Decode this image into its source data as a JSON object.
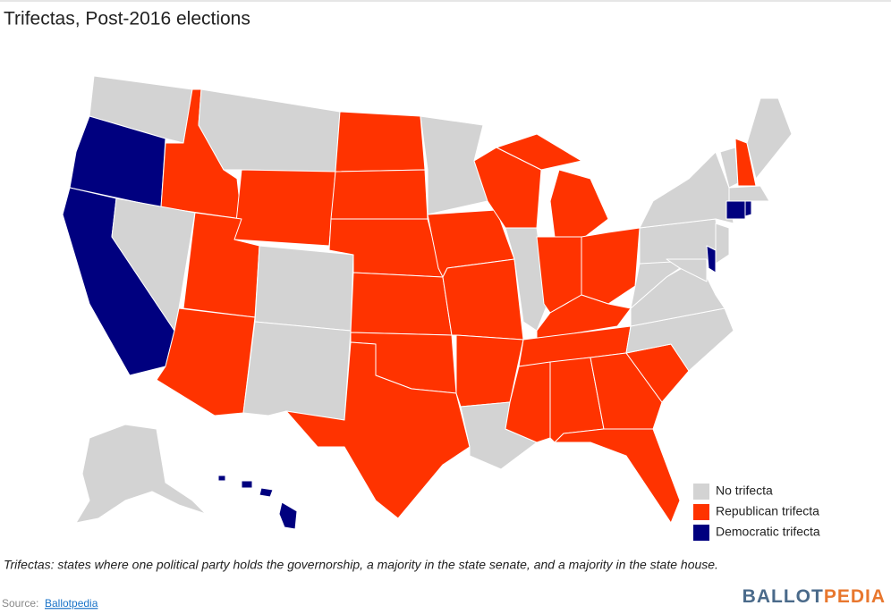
{
  "header": {
    "title": "Trifectas, Post-2016 elections"
  },
  "legend": [
    {
      "label": "No trifecta",
      "color": "#d3d3d3"
    },
    {
      "label": "Republican trifecta",
      "color": "#ff3300"
    },
    {
      "label": "Democratic trifecta",
      "color": "#00007f"
    }
  ],
  "caption": "Trifectas: states where one political party holds the governorship, a majority in the state senate, and a majority in the state house.",
  "footer": {
    "source_label": "Source:",
    "source_link": "Ballotpedia",
    "logo": [
      "BALLOT",
      "PEDIA"
    ]
  }
}
